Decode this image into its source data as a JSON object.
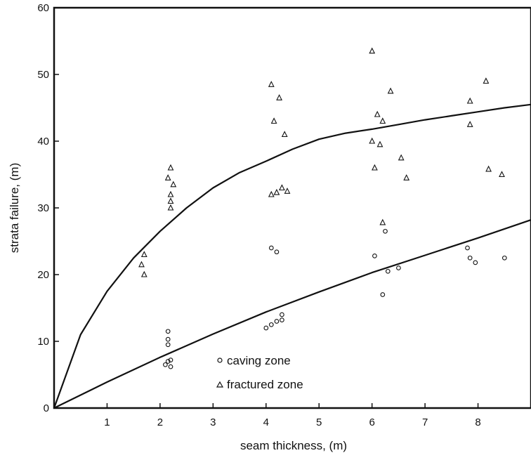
{
  "chart_data": {
    "type": "scatter",
    "xlabel": "seam thickness, (m)",
    "ylabel": "strata failure, (m)",
    "xlim": [
      0,
      9
    ],
    "ylim": [
      0,
      60
    ],
    "x_ticks": [
      1,
      2,
      3,
      4,
      5,
      6,
      7,
      8
    ],
    "y_ticks": [
      0,
      10,
      20,
      30,
      40,
      50,
      60
    ],
    "legend_position": "lower-left",
    "series": [
      {
        "name": "caving zone",
        "marker": "circle",
        "x": [
          2.1,
          2.15,
          2.15,
          2.15,
          2.15,
          2.2,
          2.2,
          4.0,
          4.1,
          4.2,
          4.3,
          4.3,
          4.1,
          4.2,
          6.05,
          6.25,
          6.3,
          6.5,
          6.2,
          7.8,
          7.85,
          7.95,
          8.5
        ],
        "y": [
          6.5,
          7.0,
          10.3,
          9.5,
          11.5,
          6.2,
          7.2,
          12.0,
          12.5,
          13.0,
          14.0,
          13.2,
          24.0,
          23.4,
          22.8,
          26.5,
          20.5,
          21.0,
          17.0,
          24.0,
          22.5,
          21.8,
          22.5
        ]
      },
      {
        "name": "fractured zone",
        "marker": "triangle",
        "x": [
          1.65,
          1.7,
          1.7,
          2.15,
          2.2,
          2.25,
          2.2,
          2.2,
          2.2,
          4.1,
          4.15,
          4.2,
          4.25,
          4.3,
          4.35,
          4.4,
          4.1,
          6.0,
          6.0,
          6.05,
          6.1,
          6.15,
          6.2,
          6.2,
          6.35,
          6.55,
          6.65,
          7.85,
          7.85,
          8.15,
          8.2,
          8.45
        ],
        "y": [
          21.5,
          23.0,
          20.0,
          34.5,
          36.0,
          33.5,
          32.0,
          31.0,
          30.0,
          32.0,
          43.0,
          32.3,
          46.5,
          33.0,
          41.0,
          32.5,
          48.5,
          53.5,
          40.0,
          36.0,
          44.0,
          39.5,
          43.0,
          27.8,
          47.5,
          37.5,
          34.5,
          46.0,
          42.5,
          49.0,
          35.8,
          35.0
        ]
      }
    ],
    "curves": [
      {
        "x": [
          0,
          0.5,
          1,
          1.5,
          2,
          2.5,
          3,
          3.5,
          4,
          4.5,
          5,
          5.5,
          6,
          6.5,
          7,
          7.5,
          8,
          8.5,
          9
        ],
        "y": [
          0,
          11,
          17.5,
          22.5,
          26.5,
          30,
          33,
          35.3,
          37,
          38.8,
          40.3,
          41.2,
          41.8,
          42.5,
          43.2,
          43.8,
          44.4,
          45,
          45.5
        ]
      },
      {
        "x": [
          0,
          1,
          2,
          3,
          4,
          5,
          6,
          7,
          8,
          9
        ],
        "y": [
          0,
          3.9,
          7.6,
          11.1,
          14.4,
          17.4,
          20.3,
          22.9,
          25.5,
          28.2
        ]
      }
    ]
  }
}
